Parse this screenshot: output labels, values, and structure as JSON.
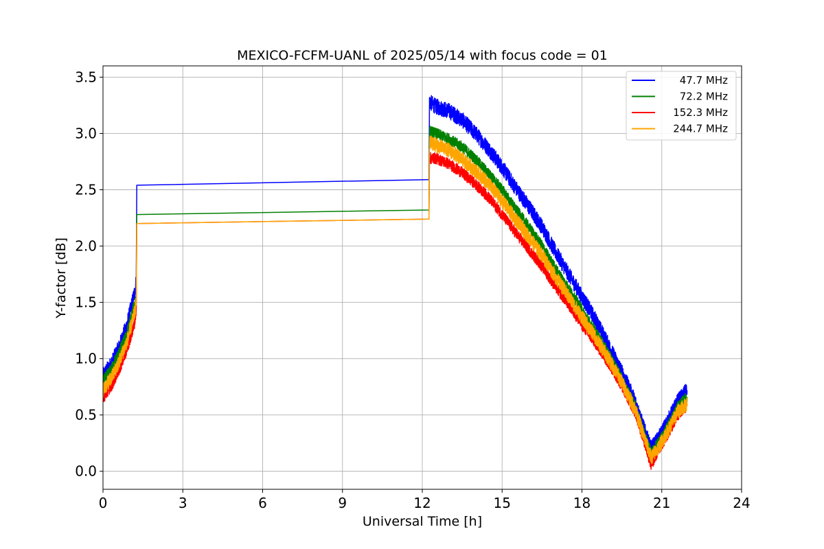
{
  "chart_data": {
    "type": "line",
    "title": "MEXICO-FCFM-UANL of 2025/05/14 with focus code = 01",
    "xlabel": "Universal Time [h]",
    "ylabel": "Y-factor [dB]",
    "xlim": [
      0,
      24
    ],
    "ylim": [
      -0.16,
      3.6
    ],
    "xticks": [
      0,
      3,
      6,
      9,
      12,
      15,
      18,
      21,
      24
    ],
    "xtick_labels": [
      "0",
      "3",
      "6",
      "9",
      "12",
      "15",
      "18",
      "21",
      "24"
    ],
    "yticks": [
      0.0,
      0.5,
      1.0,
      1.5,
      2.0,
      2.5,
      3.0,
      3.5
    ],
    "ytick_labels": [
      "0.0",
      "0.5",
      "1.0",
      "1.5",
      "2.0",
      "2.5",
      "3.0",
      "3.5"
    ],
    "grid": true,
    "legend_position": "top-right",
    "series": [
      {
        "name": "47.7 MHz",
        "color": "#0000ff",
        "noise": 0.07,
        "points": [
          [
            0,
            0.85
          ],
          [
            0.3,
            0.95
          ],
          [
            0.6,
            1.1
          ],
          [
            0.9,
            1.3
          ],
          [
            1.2,
            1.6
          ],
          [
            1.25,
            1.7
          ],
          [
            1.27,
            2.54
          ],
          [
            12.25,
            2.59
          ],
          [
            12.27,
            3.28
          ],
          [
            12.5,
            3.24
          ],
          [
            13,
            3.2
          ],
          [
            13.5,
            3.12
          ],
          [
            14,
            3.0
          ],
          [
            14.5,
            2.86
          ],
          [
            15,
            2.7
          ],
          [
            15.5,
            2.52
          ],
          [
            16,
            2.35
          ],
          [
            16.5,
            2.17
          ],
          [
            17,
            1.95
          ],
          [
            17.5,
            1.75
          ],
          [
            18,
            1.55
          ],
          [
            18.5,
            1.35
          ],
          [
            19,
            1.12
          ],
          [
            19.5,
            0.88
          ],
          [
            20,
            0.62
          ],
          [
            20.3,
            0.4
          ],
          [
            20.6,
            0.2
          ],
          [
            20.9,
            0.3
          ],
          [
            21.3,
            0.48
          ],
          [
            21.6,
            0.62
          ],
          [
            21.95,
            0.72
          ]
        ]
      },
      {
        "name": "72.2 MHz",
        "color": "#008000",
        "noise": 0.05,
        "points": [
          [
            0,
            0.8
          ],
          [
            0.3,
            0.9
          ],
          [
            0.6,
            1.05
          ],
          [
            0.9,
            1.22
          ],
          [
            1.2,
            1.5
          ],
          [
            1.25,
            1.55
          ],
          [
            1.27,
            2.28
          ],
          [
            12.25,
            2.32
          ],
          [
            12.27,
            3.02
          ],
          [
            12.5,
            3.0
          ],
          [
            13,
            2.95
          ],
          [
            13.5,
            2.88
          ],
          [
            14,
            2.77
          ],
          [
            14.5,
            2.64
          ],
          [
            15,
            2.5
          ],
          [
            15.5,
            2.33
          ],
          [
            16,
            2.17
          ],
          [
            16.5,
            2.0
          ],
          [
            17,
            1.8
          ],
          [
            17.5,
            1.62
          ],
          [
            18,
            1.43
          ],
          [
            18.5,
            1.24
          ],
          [
            19,
            1.04
          ],
          [
            19.5,
            0.82
          ],
          [
            20,
            0.58
          ],
          [
            20.3,
            0.36
          ],
          [
            20.6,
            0.16
          ],
          [
            20.9,
            0.26
          ],
          [
            21.3,
            0.43
          ],
          [
            21.6,
            0.57
          ],
          [
            21.95,
            0.66
          ]
        ]
      },
      {
        "name": "152.3 MHz",
        "color": "#ff0000",
        "noise": 0.05,
        "points": [
          [
            0,
            0.65
          ],
          [
            0.3,
            0.75
          ],
          [
            0.6,
            0.9
          ],
          [
            0.9,
            1.08
          ],
          [
            1.2,
            1.33
          ],
          [
            1.25,
            1.42
          ],
          [
            1.27,
            2.2
          ],
          [
            12.25,
            2.24
          ],
          [
            12.27,
            2.78
          ],
          [
            12.5,
            2.78
          ],
          [
            13,
            2.73
          ],
          [
            13.5,
            2.65
          ],
          [
            14,
            2.55
          ],
          [
            14.5,
            2.43
          ],
          [
            15,
            2.28
          ],
          [
            15.5,
            2.12
          ],
          [
            16,
            1.97
          ],
          [
            16.5,
            1.82
          ],
          [
            17,
            1.64
          ],
          [
            17.5,
            1.48
          ],
          [
            18,
            1.3
          ],
          [
            18.5,
            1.14
          ],
          [
            19,
            0.96
          ],
          [
            19.5,
            0.76
          ],
          [
            20,
            0.52
          ],
          [
            20.3,
            0.3
          ],
          [
            20.6,
            0.05
          ],
          [
            20.9,
            0.2
          ],
          [
            21.3,
            0.36
          ],
          [
            21.6,
            0.5
          ],
          [
            21.95,
            0.58
          ]
        ]
      },
      {
        "name": "244.7 MHz",
        "color": "#ffa500",
        "noise": 0.065,
        "points": [
          [
            0,
            0.72
          ],
          [
            0.3,
            0.82
          ],
          [
            0.6,
            0.97
          ],
          [
            0.9,
            1.15
          ],
          [
            1.2,
            1.42
          ],
          [
            1.25,
            1.5
          ],
          [
            1.27,
            2.2
          ],
          [
            12.25,
            2.24
          ],
          [
            12.27,
            2.92
          ],
          [
            12.5,
            2.9
          ],
          [
            13,
            2.85
          ],
          [
            13.5,
            2.77
          ],
          [
            14,
            2.67
          ],
          [
            14.5,
            2.55
          ],
          [
            15,
            2.4
          ],
          [
            15.5,
            2.24
          ],
          [
            16,
            2.08
          ],
          [
            16.5,
            1.92
          ],
          [
            17,
            1.73
          ],
          [
            17.5,
            1.55
          ],
          [
            18,
            1.37
          ],
          [
            18.5,
            1.19
          ],
          [
            19,
            1.0
          ],
          [
            19.5,
            0.79
          ],
          [
            20,
            0.55
          ],
          [
            20.3,
            0.33
          ],
          [
            20.6,
            0.12
          ],
          [
            20.9,
            0.22
          ],
          [
            21.3,
            0.39
          ],
          [
            21.6,
            0.53
          ],
          [
            21.95,
            0.6
          ]
        ]
      }
    ]
  }
}
